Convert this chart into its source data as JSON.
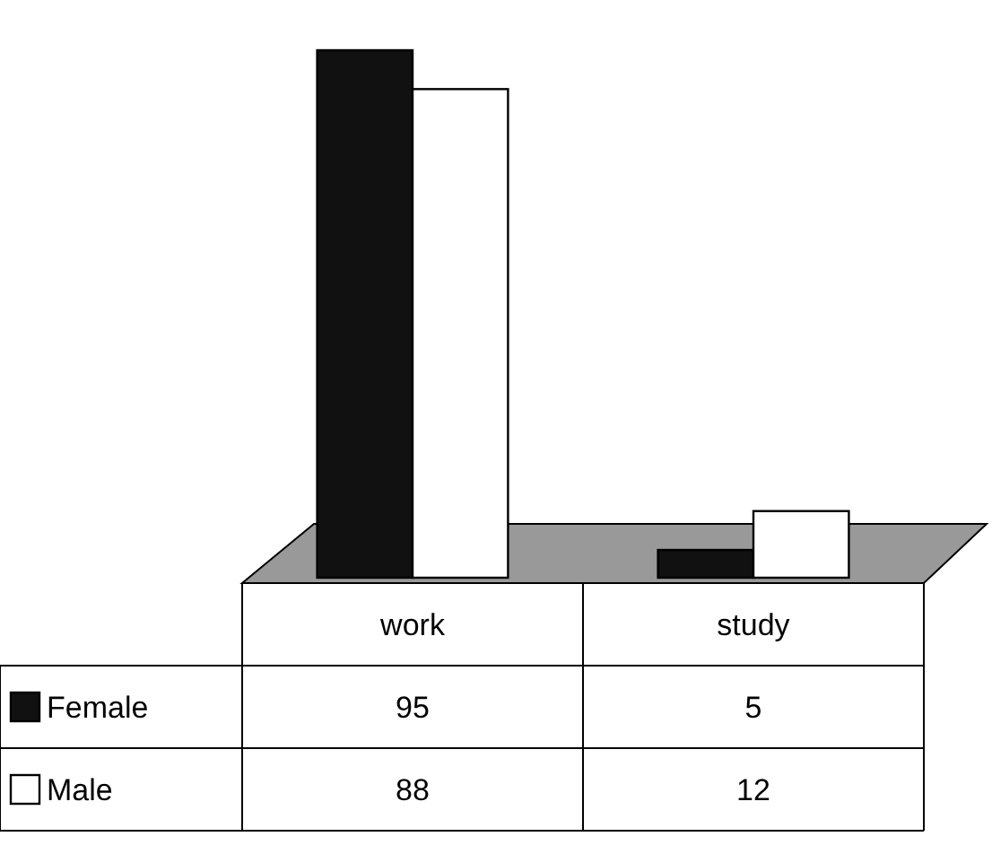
{
  "chart_data": {
    "type": "bar",
    "categories": [
      "work",
      "study"
    ],
    "series": [
      {
        "name": "Female",
        "color": "#111111",
        "values": [
          95,
          5
        ]
      },
      {
        "name": "Male",
        "color": "#ffffff",
        "values": [
          88,
          12
        ]
      }
    ],
    "data_labels": true,
    "legend": "bottom left"
  }
}
